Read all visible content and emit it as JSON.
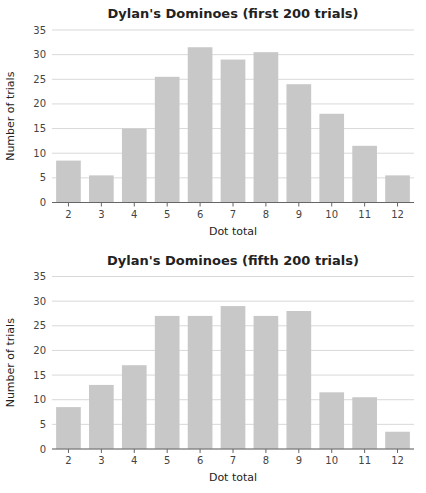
{
  "chart_data": [
    {
      "type": "bar",
      "title": "Dylan's Dominoes (first 200 trials)",
      "categories": [
        2,
        3,
        4,
        5,
        6,
        7,
        8,
        9,
        10,
        11,
        12
      ],
      "values": [
        8.5,
        5.5,
        15,
        25.5,
        31.5,
        29,
        30.5,
        24,
        18,
        11.5,
        5.5
      ],
      "xlabel": "Dot total",
      "ylabel": "Number of trials",
      "ylim": [
        0,
        35
      ],
      "yticks": [
        0,
        5,
        10,
        15,
        20,
        25,
        30,
        35
      ],
      "color": "#c8c8c8",
      "grid": true
    },
    {
      "type": "bar",
      "title": "Dylan's Dominoes (fifth 200 trials)",
      "categories": [
        2,
        3,
        4,
        5,
        6,
        7,
        8,
        9,
        10,
        11,
        12
      ],
      "values": [
        8.5,
        13,
        17,
        27,
        27,
        29,
        27,
        28,
        11.5,
        10.5,
        3.5
      ],
      "xlabel": "Dot total",
      "ylabel": "Number of trials",
      "ylim": [
        0,
        35
      ],
      "yticks": [
        0,
        5,
        10,
        15,
        20,
        25,
        30,
        35
      ],
      "color": "#c8c8c8",
      "grid": true
    }
  ]
}
